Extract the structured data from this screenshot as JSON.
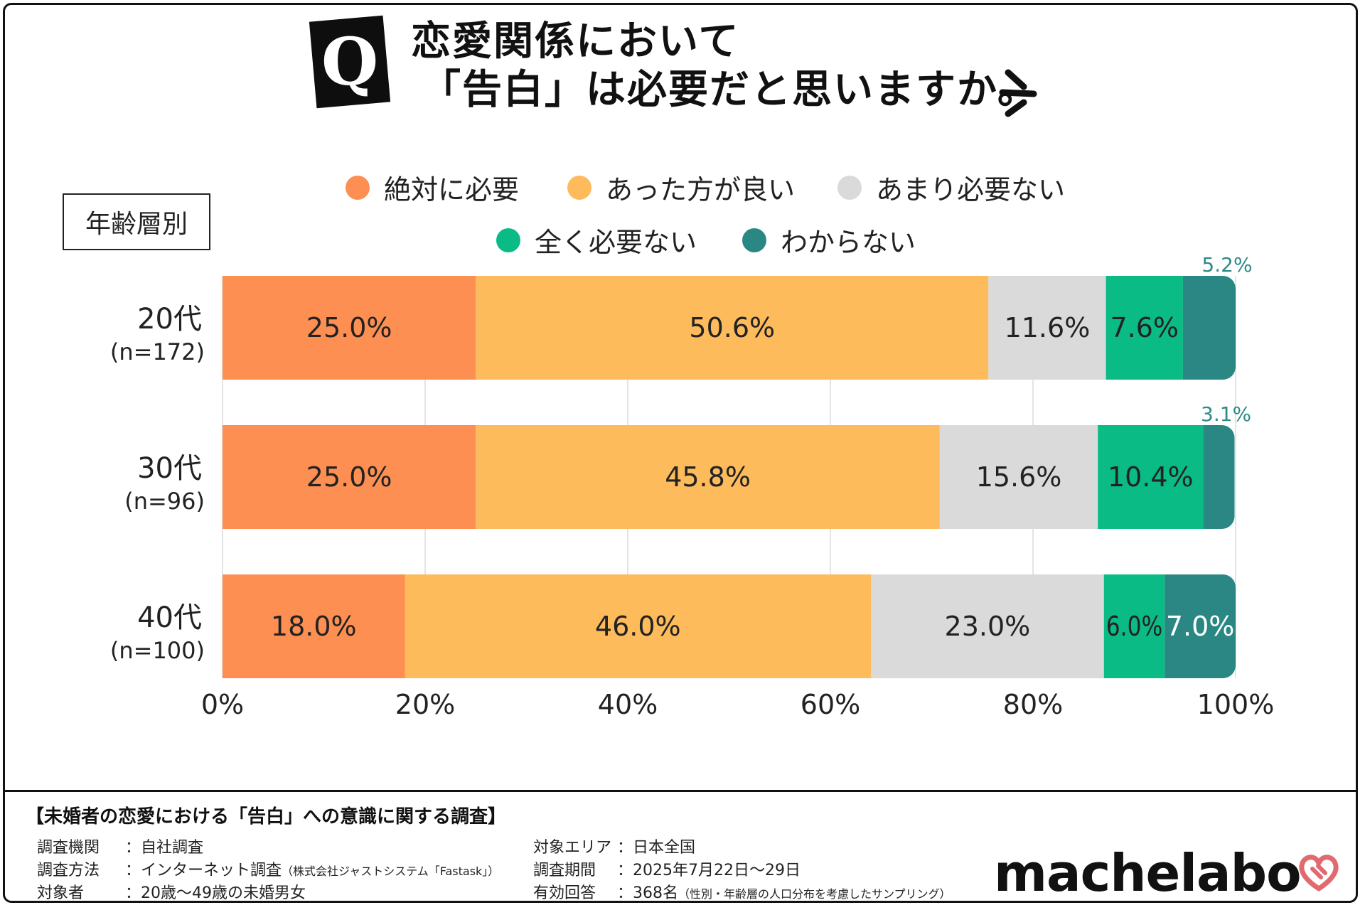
{
  "title": {
    "q_letter": "Q",
    "line1": "恋愛関係において",
    "line2": "「告白」は必要だと思いますか。"
  },
  "age_box": "年齢層別",
  "colors": {
    "absolutely_needed": "#fd8f52",
    "better_to_have": "#fdbb5c",
    "not_really_needed": "#dadada",
    "not_needed_at_all": "#0bbb86",
    "dont_know": "#2a8783"
  },
  "chart_data": {
    "type": "bar",
    "orientation": "horizontal",
    "stacked": true,
    "categories": [
      "20代",
      "30代",
      "40代"
    ],
    "n_labels": [
      "(n=172)",
      "(n=96)",
      "(n=100)"
    ],
    "series": [
      {
        "name": "絶対に必要",
        "values": [
          25.0,
          25.0,
          18.0
        ],
        "labels": [
          "25.0%",
          "25.0%",
          "18.0%"
        ]
      },
      {
        "name": "あった方が良い",
        "values": [
          50.6,
          45.8,
          46.0
        ],
        "labels": [
          "50.6%",
          "45.8%",
          "46.0%"
        ]
      },
      {
        "name": "あまり必要ない",
        "values": [
          11.6,
          15.6,
          23.0
        ],
        "labels": [
          "11.6%",
          "15.6%",
          "23.0%"
        ]
      },
      {
        "name": "全く必要ない",
        "values": [
          7.6,
          10.4,
          6.0
        ],
        "labels": [
          "7.6%",
          "10.4%",
          "6.0%"
        ]
      },
      {
        "name": "わからない",
        "values": [
          5.2,
          3.1,
          7.0
        ],
        "labels": [
          "5.2%",
          "3.1%",
          "7.0%"
        ]
      }
    ],
    "xlim": [
      0,
      100
    ],
    "xticks": [
      "0%",
      "20%",
      "40%",
      "60%",
      "80%",
      "100%"
    ],
    "grid": true,
    "legend": "top"
  },
  "footer": {
    "title": "【未婚者の恋愛における「告白」への意識に関する調査】",
    "rows_left": [
      {
        "label": "調査機関",
        "value": "：自社調査",
        "note": ""
      },
      {
        "label": "調査方法",
        "value": "：インターネット調査",
        "note": "（株式会社ジャストシステム「Fastask」）"
      },
      {
        "label": "対象者",
        "value": "：20歳〜49歳の未婚男女",
        "note": ""
      }
    ],
    "rows_right": [
      {
        "label": "対象エリア",
        "value": "：日本全国",
        "note": ""
      },
      {
        "label": "調査期間",
        "value": "：2025年7月22日〜29日",
        "note": ""
      },
      {
        "label": "有効回答",
        "value": "：368名",
        "note": "（性別・年齢層の人口分布を考慮したサンプリング）"
      }
    ],
    "logo": "machelabo"
  }
}
